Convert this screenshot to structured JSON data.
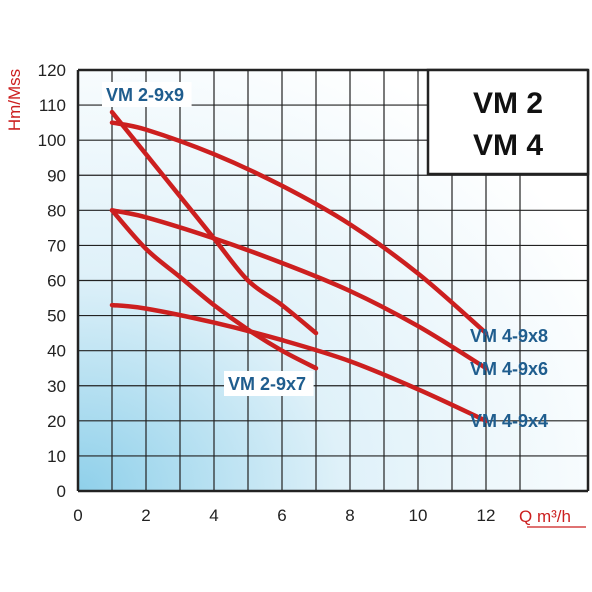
{
  "chart_data": {
    "type": "line",
    "xlabel": "Q m³/h",
    "ylabel": "Hm/Mss",
    "xlim": [
      0,
      15
    ],
    "ylim": [
      0,
      120
    ],
    "xticks": [
      0,
      2,
      4,
      6,
      8,
      10,
      12
    ],
    "yticks": [
      0,
      10,
      20,
      30,
      40,
      50,
      60,
      70,
      80,
      90,
      100,
      110,
      120
    ],
    "grid": true,
    "title_box": [
      "VM 2",
      "VM 4"
    ],
    "colors": {
      "curve": "#cc1f1f",
      "label": "#1f5d8e",
      "grid": "#222222",
      "axis_title": "#cc1f1f"
    },
    "series": [
      {
        "name": "VM 2-9x9",
        "x": [
          1,
          2,
          3,
          4,
          5,
          6,
          7
        ],
        "y": [
          108,
          96,
          84,
          72,
          60,
          53,
          45
        ]
      },
      {
        "name": "VM 2-9x7",
        "x": [
          1,
          2,
          3,
          4,
          5,
          6,
          7
        ],
        "y": [
          80,
          69,
          61,
          53,
          46,
          40,
          35
        ]
      },
      {
        "name": "VM 4-9x8",
        "x": [
          1,
          2,
          4,
          6,
          8,
          10,
          12
        ],
        "y": [
          105,
          103,
          96,
          87,
          76,
          62,
          45
        ]
      },
      {
        "name": "VM 4-9x6",
        "x": [
          1,
          2,
          4,
          6,
          8,
          10,
          12
        ],
        "y": [
          80,
          78,
          72,
          65,
          57,
          47,
          35
        ]
      },
      {
        "name": "VM 4-9x4",
        "x": [
          1,
          2,
          4,
          6,
          8,
          10,
          12
        ],
        "y": [
          53,
          52,
          48,
          43,
          37,
          29,
          20
        ]
      }
    ]
  }
}
